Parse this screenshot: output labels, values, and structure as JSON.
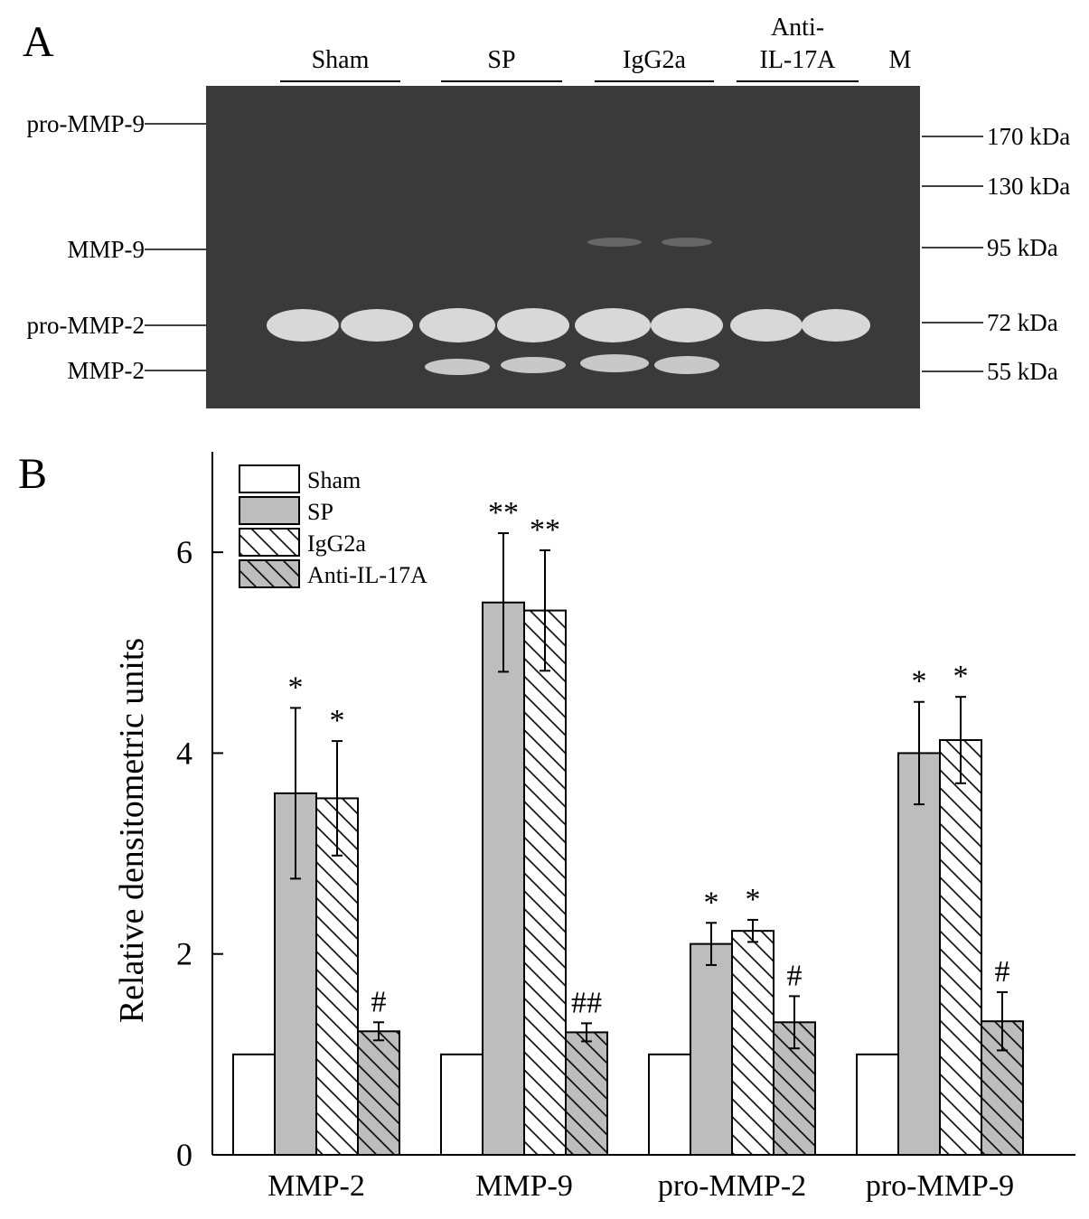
{
  "panel_a": {
    "label": "A",
    "lane_groups": [
      [
        "Sham"
      ],
      [
        "SP"
      ],
      [
        "IgG2a"
      ],
      [
        "Anti-",
        "IL-17A"
      ]
    ],
    "marker_lane": "M",
    "left_labels": [
      "pro-MMP-9",
      "MMP-9",
      "pro-MMP-2",
      "MMP-2"
    ],
    "right_labels": [
      "170 kDa",
      "130 kDa",
      "95 kDa",
      "72 kDa",
      "55 kDa"
    ]
  },
  "chart_data": {
    "type": "bar",
    "panel_label": "B",
    "y_label": "Relative densitometric units",
    "categories": [
      "MMP-2",
      "MMP-9",
      "pro-MMP-2",
      "pro-MMP-9"
    ],
    "series": [
      {
        "name": "Sham",
        "color": "#ffffff",
        "hatch": false,
        "values": [
          1,
          1,
          1,
          1
        ],
        "errors": [
          null,
          null,
          null,
          null
        ],
        "annotations": [
          null,
          null,
          null,
          null
        ]
      },
      {
        "name": "SP",
        "color": "#bdbdbd",
        "hatch": false,
        "values": [
          3.6,
          5.5,
          2.1,
          4.0
        ],
        "errors": [
          0.85,
          0.69,
          0.21,
          0.51
        ],
        "annotations": [
          "*",
          "**",
          "*",
          "*"
        ]
      },
      {
        "name": "IgG2a",
        "color": "#ffffff",
        "hatch": true,
        "values": [
          3.55,
          5.42,
          2.23,
          4.13
        ],
        "errors": [
          0.57,
          0.6,
          0.11,
          0.43
        ],
        "annotations": [
          "*",
          "**",
          "*",
          "*"
        ]
      },
      {
        "name": "Anti-IL-17A",
        "color": "#bdbdbd",
        "hatch": true,
        "values": [
          1.23,
          1.22,
          1.32,
          1.33
        ],
        "errors": [
          0.09,
          0.09,
          0.26,
          0.29
        ],
        "annotations": [
          "#",
          "##",
          "#",
          "#"
        ]
      }
    ],
    "ylim": [
      0,
      7
    ],
    "yticks": [
      0,
      2,
      4,
      6
    ],
    "legend": "upper-left"
  }
}
